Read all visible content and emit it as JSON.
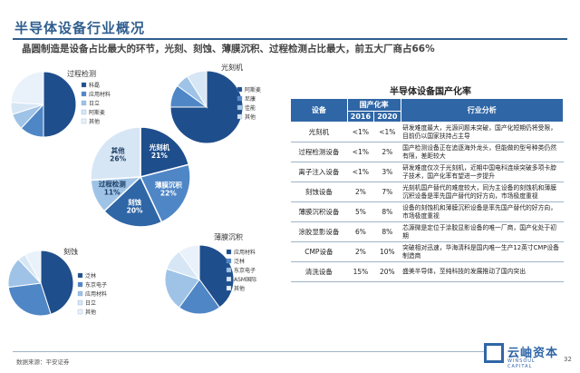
{
  "page": {
    "title": "半导体设备行业概况",
    "subtitle": "晶圆制造是设备占比最大的环节，光刻、刻蚀、薄膜沉积、过程检测占比最大，前五大厂商占66%"
  },
  "chart_data": [
    {
      "type": "pie",
      "id": "main",
      "categories": [
        "光刻机",
        "薄膜沉积",
        "刻蚀",
        "过程检测",
        "其他"
      ],
      "values": [
        21,
        22,
        20,
        11,
        26
      ],
      "labels": [
        "光刻机\n21%",
        "薄膜沉积\n22%",
        "刻蚀\n20%",
        "过程检测\n11%",
        "其他\n26%"
      ]
    },
    {
      "type": "pie",
      "id": "detection",
      "title": "过程检测",
      "legend": [
        "科磊",
        "应用材料",
        "日立",
        "阿斯麦",
        "其他"
      ]
    },
    {
      "type": "pie",
      "id": "litho",
      "title": "光刻机",
      "legend": [
        "阿斯麦",
        "尼康",
        "佳能",
        "其他"
      ]
    },
    {
      "type": "pie",
      "id": "etch",
      "title": "刻蚀",
      "legend": [
        "泛林",
        "东京电子",
        "应用材料",
        "日立",
        "其他"
      ]
    },
    {
      "type": "pie",
      "id": "film",
      "title": "薄膜沉积",
      "legend": [
        "应用材料",
        "泛林",
        "东京电子",
        "ASM国际",
        "其他"
      ]
    }
  ],
  "table": {
    "title": "半导体设备国产化率",
    "headers": {
      "equipment": "设备",
      "rate": "国产化率",
      "y2016": "2016",
      "y2020": "2020",
      "analysis": "行业分析"
    },
    "rows": [
      {
        "name": "光刻机",
        "y2016": "<1%",
        "y2020": "<1%",
        "analysis": "研发难度最大，光源问题未突破，国产化短期仍将受限，目前仍以国家扶持占主导"
      },
      {
        "name": "过程检测设备",
        "y2016": "<1%",
        "y2020": "2%",
        "analysis": "国产检测设备正在追逐海外龙头，但能做的型号种类仍然有限，差距较大"
      },
      {
        "name": "离子注入设备",
        "y2016": "<1%",
        "y2020": "3%",
        "analysis": "研发难度仅次于光刻机，近期中国电科连续突破多项卡脖子技术，国产化率有望进一步提升"
      },
      {
        "name": "刻蚀设备",
        "y2016": "2%",
        "y2020": "7%",
        "analysis": "光刻机国产替代的难度较大，同为主设备的刻蚀机和薄膜沉积设备是率先国产替代的好方向，市场极度重视"
      },
      {
        "name": "薄膜沉积设备",
        "y2016": "5%",
        "y2020": "8%",
        "analysis": "设备的刻蚀机和薄膜沉积设备是率先国产替代的好方向，市场极度重视"
      },
      {
        "name": "涂胶显影设备",
        "y2016": "6%",
        "y2020": "8%",
        "analysis": "芯源微是定位于涂胶显影设备的唯一厂商，国产化处于初期"
      },
      {
        "name": "CMP设备",
        "y2016": "2%",
        "y2020": "10%",
        "analysis": "突破相对迅速，华海清科是国内唯一生产12英寸CMP设备制造商"
      },
      {
        "name": "清洗设备",
        "y2016": "15%",
        "y2020": "20%",
        "analysis": "盛美半导体，至纯科技的发展推动了国内突出"
      }
    ]
  },
  "footer": {
    "source": "数据来源：平安证券",
    "logo_cn": "云岫资本",
    "logo_en": "WINSOUL CAPITAL",
    "page_number": "32"
  },
  "colors": {
    "accent": "#2f66a6",
    "dark_blue": "#1f4e8c",
    "mid_blue": "#4f86c6",
    "light_blue": "#9ec3e6",
    "pale_blue": "#d7e6f5"
  }
}
